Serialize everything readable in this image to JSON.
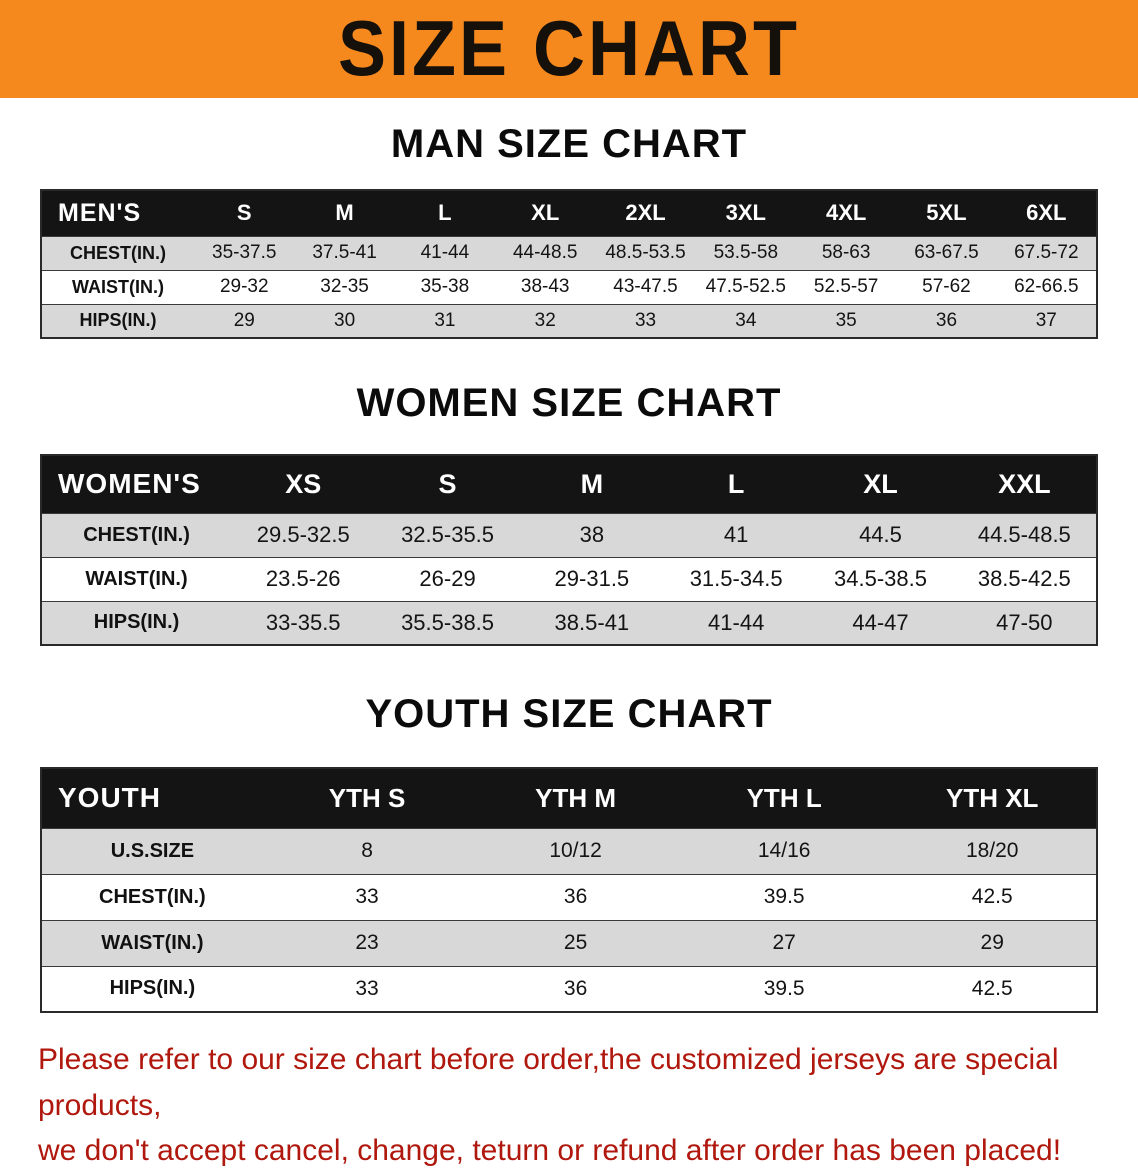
{
  "colors": {
    "banner-bg": "#f6891e",
    "header-bg": "#141414",
    "row-gray": "#d8d8d8",
    "disclaimer-red": "#b0170d"
  },
  "banner": {
    "title": "SIZE CHART"
  },
  "sections": [
    {
      "title": "MAN SIZE CHART",
      "header": [
        "MEN'S",
        "S",
        "M",
        "L",
        "XL",
        "2XL",
        "3XL",
        "4XL",
        "5XL",
        "6XL"
      ],
      "rows": [
        {
          "label": "CHEST(IN.)",
          "values": [
            "35-37.5",
            "37.5-41",
            "41-44",
            "44-48.5",
            "48.5-53.5",
            "53.5-58",
            "58-63",
            "63-67.5",
            "67.5-72"
          ]
        },
        {
          "label": "WAIST(IN.)",
          "values": [
            "29-32",
            "32-35",
            "35-38",
            "38-43",
            "43-47.5",
            "47.5-52.5",
            "52.5-57",
            "57-62",
            "62-66.5"
          ]
        },
        {
          "label": "HIPS(IN.)",
          "values": [
            "29",
            "30",
            "31",
            "32",
            "33",
            "34",
            "35",
            "36",
            "37"
          ]
        }
      ]
    },
    {
      "title": "WOMEN SIZE CHART",
      "header": [
        "WOMEN'S",
        "XS",
        "S",
        "M",
        "L",
        "XL",
        "XXL"
      ],
      "rows": [
        {
          "label": "CHEST(IN.)",
          "values": [
            "29.5-32.5",
            "32.5-35.5",
            "38",
            "41",
            "44.5",
            "44.5-48.5"
          ]
        },
        {
          "label": "WAIST(IN.)",
          "values": [
            "23.5-26",
            "26-29",
            "29-31.5",
            "31.5-34.5",
            "34.5-38.5",
            "38.5-42.5"
          ]
        },
        {
          "label": "HIPS(IN.)",
          "values": [
            "33-35.5",
            "35.5-38.5",
            "38.5-41",
            "41-44",
            "44-47",
            "47-50"
          ]
        }
      ]
    },
    {
      "title": "YOUTH SIZE CHART",
      "header": [
        "YOUTH",
        "YTH S",
        "YTH M",
        "YTH L",
        "YTH XL"
      ],
      "rows": [
        {
          "label": "U.S.SIZE",
          "values": [
            "8",
            "10/12",
            "14/16",
            "18/20"
          ]
        },
        {
          "label": "CHEST(IN.)",
          "values": [
            "33",
            "36",
            "39.5",
            "42.5"
          ]
        },
        {
          "label": "WAIST(IN.)",
          "values": [
            "23",
            "25",
            "27",
            "29"
          ]
        },
        {
          "label": "HIPS(IN.)",
          "values": [
            "33",
            "36",
            "39.5",
            "42.5"
          ]
        }
      ]
    }
  ],
  "disclaimer": {
    "line1": "Please refer to our size chart before order,the customized jerseys are special products,",
    "line2": "we don't accept cancel, change, teturn or refund after order has been placed!"
  }
}
